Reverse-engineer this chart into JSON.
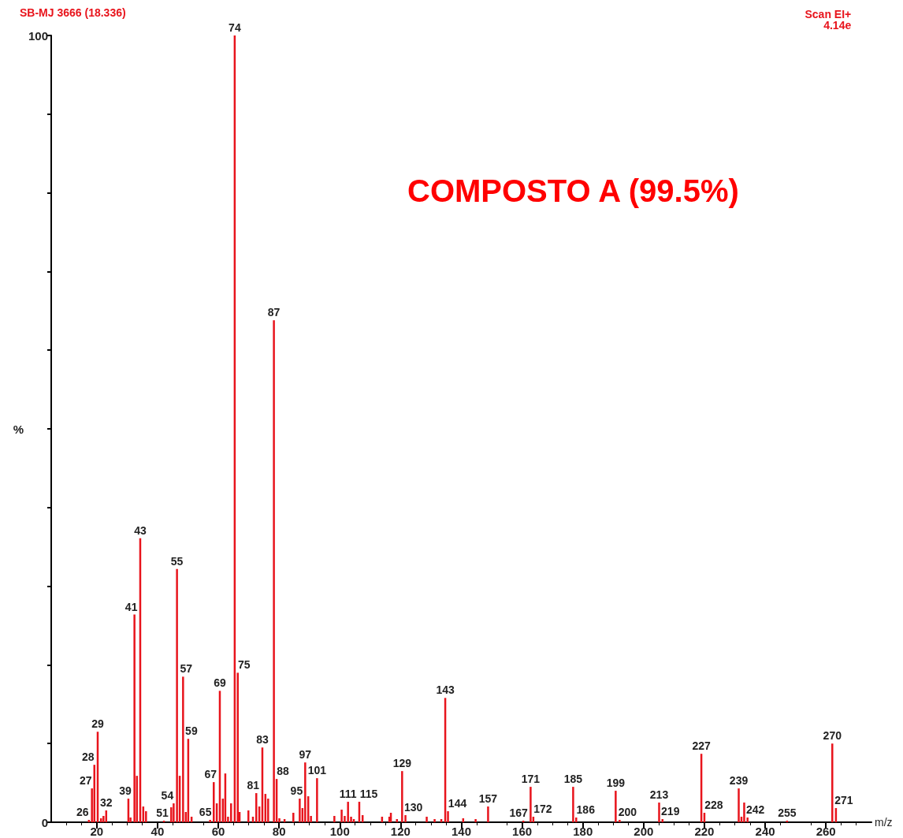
{
  "chart_data": {
    "type": "bar",
    "title": "SB-MJ 3666 (18.336)",
    "subtitle": "Scan EI+\n4.14e",
    "xlabel": "m/z",
    "ylabel": "%",
    "annotations": [
      "COMPOSTO A (99.5%)",
      {
        "text": "26",
        "x": 17.4,
        "y": 0.3
      },
      {
        "text": "27",
        "x": 18.4,
        "y": 4.3
      },
      {
        "text": "28",
        "x": 19.2,
        "y": 7.3
      },
      {
        "text": "29",
        "x": 20.3,
        "y": 11.5
      },
      {
        "text": "32",
        "x": 23.1,
        "y": 1.5
      },
      {
        "text": "39",
        "x": 30.4,
        "y": 3.0
      },
      {
        "text": "41",
        "x": 32.4,
        "y": 26.4
      },
      {
        "text": "43",
        "x": 34.3,
        "y": 36.1
      },
      {
        "text": "51",
        "x": 42.1,
        "y": 0.2
      },
      {
        "text": "54",
        "x": 45.3,
        "y": 2.4
      },
      {
        "text": "55",
        "x": 46.4,
        "y": 32.2
      },
      {
        "text": "57",
        "x": 48.4,
        "y": 18.5
      },
      {
        "text": "59",
        "x": 50.1,
        "y": 10.6
      },
      {
        "text": "65",
        "x": 57.3,
        "y": 0.3
      },
      {
        "text": "67",
        "x": 58.5,
        "y": 5.1
      },
      {
        "text": "69",
        "x": 60.5,
        "y": 16.7
      },
      {
        "text": "74",
        "x": 65.4,
        "y": 100
      },
      {
        "text": "75",
        "x": 66.4,
        "y": 19.0
      },
      {
        "text": "81",
        "x": 72.5,
        "y": 3.7
      },
      {
        "text": "83",
        "x": 74.5,
        "y": 9.5
      },
      {
        "text": "87",
        "x": 78.3,
        "y": 63.8
      },
      {
        "text": "88",
        "x": 79.2,
        "y": 5.5
      },
      {
        "text": "95",
        "x": 86.8,
        "y": 3.0
      },
      {
        "text": "97",
        "x": 88.6,
        "y": 7.6
      },
      {
        "text": "101",
        "x": 92.5,
        "y": 5.6
      },
      {
        "text": "111",
        "x": 102.7,
        "y": 2.6
      },
      {
        "text": "115",
        "x": 106.4,
        "y": 2.6
      },
      {
        "text": "129",
        "x": 120.5,
        "y": 6.5
      },
      {
        "text": "130",
        "x": 121.6,
        "y": 0.9
      },
      {
        "text": "143",
        "x": 134.7,
        "y": 15.8
      },
      {
        "text": "144",
        "x": 135.6,
        "y": 1.4
      },
      {
        "text": "157",
        "x": 148.8,
        "y": 2.0
      },
      {
        "text": "167",
        "x": 160.4,
        "y": 0.2
      },
      {
        "text": "171",
        "x": 162.8,
        "y": 4.5
      },
      {
        "text": "172",
        "x": 163.7,
        "y": 0.7
      },
      {
        "text": "185",
        "x": 176.8,
        "y": 4.5
      },
      {
        "text": "186",
        "x": 177.8,
        "y": 0.6
      },
      {
        "text": "199",
        "x": 190.8,
        "y": 4.0
      },
      {
        "text": "200",
        "x": 192.1,
        "y": 0.3
      },
      {
        "text": "213",
        "x": 205.1,
        "y": 2.5
      },
      {
        "text": "219",
        "x": 206.2,
        "y": 0.4
      },
      {
        "text": "227",
        "x": 219.0,
        "y": 8.7
      },
      {
        "text": "228",
        "x": 220.0,
        "y": 1.2
      },
      {
        "text": "239",
        "x": 231.3,
        "y": 4.3
      },
      {
        "text": "242",
        "x": 234.2,
        "y": 0.6
      },
      {
        "text": "255",
        "x": 247.2,
        "y": 0.2
      },
      {
        "text": "270",
        "x": 262.1,
        "y": 10.0
      },
      {
        "text": "271",
        "x": 263.3,
        "y": 1.8
      }
    ],
    "x": [
      17.4,
      18.4,
      19.2,
      20.3,
      21.4,
      22.2,
      23.1,
      30.4,
      31.1,
      32.4,
      33.2,
      34.3,
      35.3,
      36.2,
      42.1,
      44.5,
      45.3,
      46.4,
      47.3,
      48.4,
      49.3,
      50.1,
      51.2,
      57.3,
      58.5,
      59.5,
      60.5,
      61.5,
      62.3,
      63.2,
      64.2,
      65.4,
      66.4,
      67.0,
      69.9,
      71.4,
      72.5,
      73.5,
      74.5,
      75.5,
      76.4,
      78.3,
      79.2,
      80.1,
      81.8,
      84.7,
      86.8,
      87.7,
      88.6,
      89.6,
      90.5,
      92.5,
      98.2,
      100.6,
      101.6,
      102.7,
      103.7,
      104.6,
      106.4,
      107.5,
      113.9,
      116.3,
      116.8,
      118.8,
      120.5,
      121.6,
      128.6,
      131.2,
      133.4,
      134.7,
      135.6,
      140.6,
      144.7,
      148.8,
      160.4,
      162.8,
      163.7,
      176.8,
      177.8,
      190.8,
      192.1,
      205.1,
      206.2,
      219.0,
      220.0,
      231.3,
      232.2,
      233.1,
      234.2,
      247.2,
      262.1,
      263.3
    ],
    "values": [
      0.3,
      4.3,
      7.3,
      11.5,
      0.5,
      0.8,
      1.5,
      3.0,
      0.6,
      26.4,
      5.9,
      36.1,
      2.0,
      1.4,
      0.2,
      1.9,
      2.4,
      32.2,
      5.9,
      18.5,
      1.3,
      10.6,
      0.7,
      0.3,
      5.1,
      2.4,
      16.7,
      3.0,
      6.2,
      0.7,
      2.4,
      100,
      19.0,
      1.3,
      1.5,
      0.7,
      3.7,
      2.0,
      9.5,
      3.6,
      3.0,
      63.8,
      5.5,
      0.5,
      0.4,
      1.2,
      3.0,
      1.8,
      7.6,
      3.3,
      0.8,
      5.6,
      0.8,
      1.6,
      0.8,
      2.6,
      0.7,
      0.4,
      2.6,
      0.9,
      0.7,
      0.7,
      1.2,
      0.4,
      6.5,
      0.9,
      0.7,
      0.4,
      0.4,
      15.8,
      1.4,
      0.5,
      0.4,
      2.0,
      0.2,
      4.5,
      0.7,
      4.5,
      0.6,
      4.0,
      0.3,
      2.5,
      0.4,
      8.7,
      1.2,
      4.3,
      0.7,
      2.5,
      0.6,
      0.2,
      10.0,
      1.8
    ],
    "color": "#e8141c",
    "xlim": [
      5,
      275
    ],
    "xticks": [
      20,
      40,
      60,
      80,
      100,
      120,
      140,
      160,
      180,
      200,
      220,
      240,
      260
    ],
    "ylim": [
      0,
      100
    ],
    "yticks": [
      0,
      {
        "value": 10,
        "label": null
      },
      {
        "value": 20,
        "label": null
      },
      {
        "value": 30,
        "label": null
      },
      {
        "value": 40,
        "label": null
      },
      {
        "value": 50,
        "label": null
      },
      {
        "value": 60,
        "label": null
      },
      {
        "value": 70,
        "label": null
      },
      {
        "value": 80,
        "label": null
      },
      {
        "value": 90,
        "label": null
      },
      100
    ],
    "grid": false
  }
}
